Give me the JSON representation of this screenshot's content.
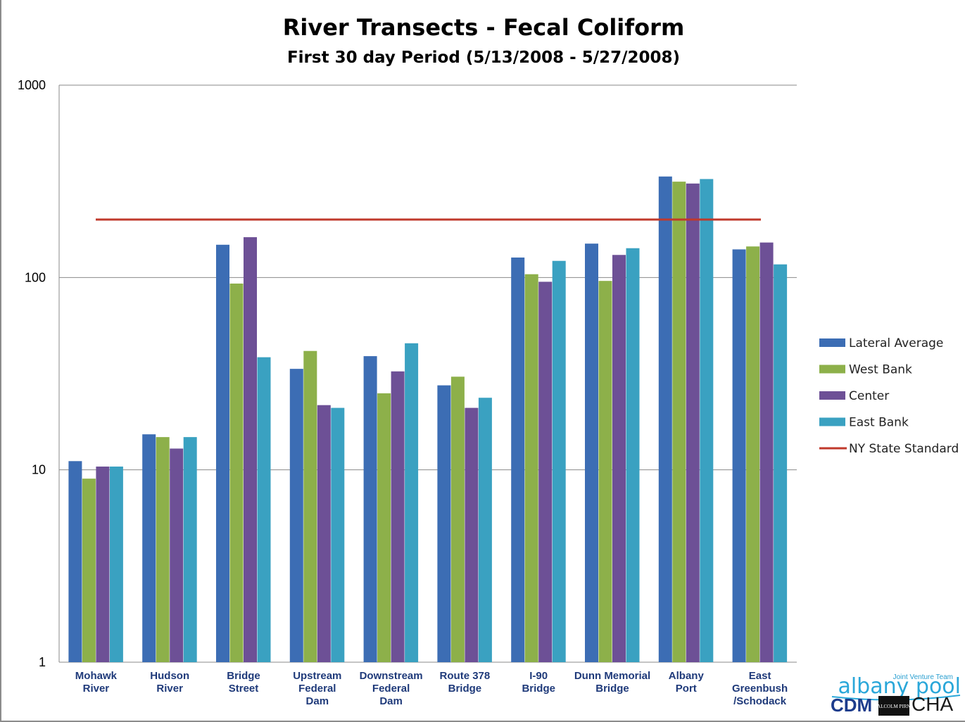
{
  "chart_data": {
    "type": "bar",
    "title": "River Transects - Fecal Coliform",
    "subtitle": "First 30 day Period (5/13/2008 - 5/27/2008)",
    "yscale": "log",
    "ylim": [
      1,
      1000
    ],
    "yticks": [
      "1000",
      "100",
      "10",
      "1"
    ],
    "grid": true,
    "legend_position": "right",
    "categories": [
      [
        "Mohawk",
        "River"
      ],
      [
        "Hudson",
        "River"
      ],
      [
        "Bridge",
        "Street"
      ],
      [
        "Upstream",
        "Federal",
        "Dam"
      ],
      [
        "Downstream",
        "Federal",
        "Dam"
      ],
      [
        "Route 378",
        "Bridge"
      ],
      [
        "I-90",
        "Bridge"
      ],
      [
        "Dunn Memorial",
        "Bridge"
      ],
      [
        "Albany",
        "Port"
      ],
      [
        "East",
        "Greenbush",
        "/Schodack"
      ]
    ],
    "series": [
      {
        "name": "Lateral Average",
        "color": "#3c6db4",
        "values": [
          11.1,
          15.3,
          148,
          33.5,
          39,
          27.5,
          127,
          150,
          335,
          140
        ]
      },
      {
        "name": "West Bank",
        "color": "#8db04a",
        "values": [
          9.0,
          14.8,
          93,
          41.5,
          25,
          30.5,
          104,
          96,
          315,
          145
        ]
      },
      {
        "name": "Center",
        "color": "#6d5096",
        "values": [
          10.4,
          12.9,
          162,
          21.7,
          32.5,
          21,
          95,
          131,
          308,
          152
        ]
      },
      {
        "name": "East Bank",
        "color": "#3aa1c1",
        "values": [
          10.4,
          14.8,
          38.5,
          21,
          45.5,
          23.7,
          122,
          142,
          325,
          117
        ]
      }
    ],
    "reference_line": {
      "name": "NY State Standard",
      "value": 200,
      "color": "#c0392b"
    }
  },
  "logo": {
    "tagline": "Joint Venture Team",
    "name": "albany pool",
    "partners": [
      "CDM",
      "MALCOLM PIRNIE",
      "CHA"
    ]
  }
}
